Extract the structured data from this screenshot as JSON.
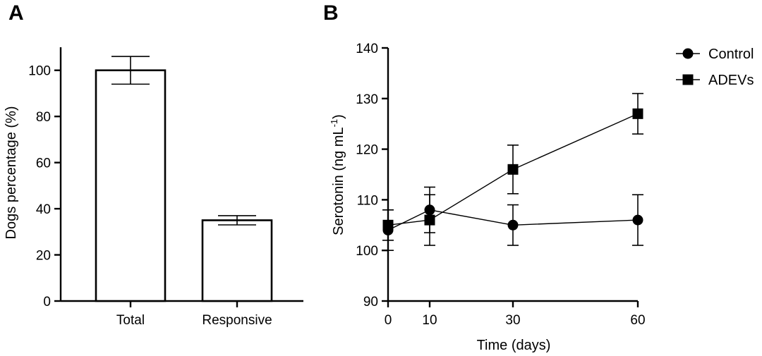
{
  "chart_data": [
    {
      "panel": "A",
      "type": "bar",
      "categories": [
        "Total",
        "Responsive"
      ],
      "values": [
        100,
        35
      ],
      "error": [
        6,
        2
      ],
      "ylabel": "Dogs percentage (%)",
      "xlabel": "",
      "ylim": [
        0,
        110
      ],
      "yticks": [
        0,
        20,
        40,
        60,
        80,
        100
      ],
      "bar_fill": "#ffffff",
      "line_color": "#000000"
    },
    {
      "panel": "B",
      "type": "line",
      "x": [
        0,
        10,
        30,
        60
      ],
      "xticks": [
        0,
        10,
        30,
        60
      ],
      "xlim": [
        0,
        60
      ],
      "ylim": [
        90,
        140
      ],
      "yticks": [
        90,
        100,
        110,
        120,
        130,
        140
      ],
      "xlabel": "Time (days)",
      "ylabel_main": "Serotonin (ng mL",
      "ylabel_sup": "-1",
      "ylabel_end": ")",
      "legend_position": "top-right",
      "series": [
        {
          "name": "Control",
          "marker": "circle",
          "values": [
            104,
            108,
            105,
            106
          ],
          "error": [
            4,
            4.5,
            4,
            5
          ]
        },
        {
          "name": "ADEVs",
          "marker": "square",
          "values": [
            105,
            106,
            116,
            127
          ],
          "error": [
            3,
            5,
            4.8,
            4
          ]
        }
      ]
    }
  ]
}
